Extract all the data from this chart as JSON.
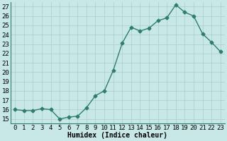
{
  "title": "",
  "xlabel": "Humidex (Indice chaleur)",
  "ylabel": "",
  "x": [
    0,
    1,
    2,
    3,
    4,
    5,
    6,
    7,
    8,
    9,
    10,
    11,
    12,
    13,
    14,
    15,
    16,
    17,
    18,
    19,
    20,
    21,
    22,
    23
  ],
  "y": [
    16.0,
    15.9,
    15.9,
    16.1,
    16.0,
    15.0,
    15.2,
    15.3,
    16.2,
    17.5,
    18.0,
    20.2,
    23.1,
    24.8,
    24.4,
    24.7,
    25.5,
    25.8,
    27.2,
    26.4,
    26.0,
    24.1,
    23.2,
    22.2
  ],
  "line_color": "#2e7d6e",
  "marker": "D",
  "marker_size": 2.5,
  "bg_color": "#c8e8e8",
  "grid_color": "#aacccc",
  "ylim": [
    14.5,
    27.5
  ],
  "xlim": [
    -0.5,
    23.5
  ],
  "yticks": [
    15,
    16,
    17,
    18,
    19,
    20,
    21,
    22,
    23,
    24,
    25,
    26,
    27
  ],
  "xticks": [
    0,
    1,
    2,
    3,
    4,
    5,
    6,
    7,
    8,
    9,
    10,
    11,
    12,
    13,
    14,
    15,
    16,
    17,
    18,
    19,
    20,
    21,
    22,
    23
  ],
  "label_fontsize": 7,
  "tick_fontsize": 6.5
}
